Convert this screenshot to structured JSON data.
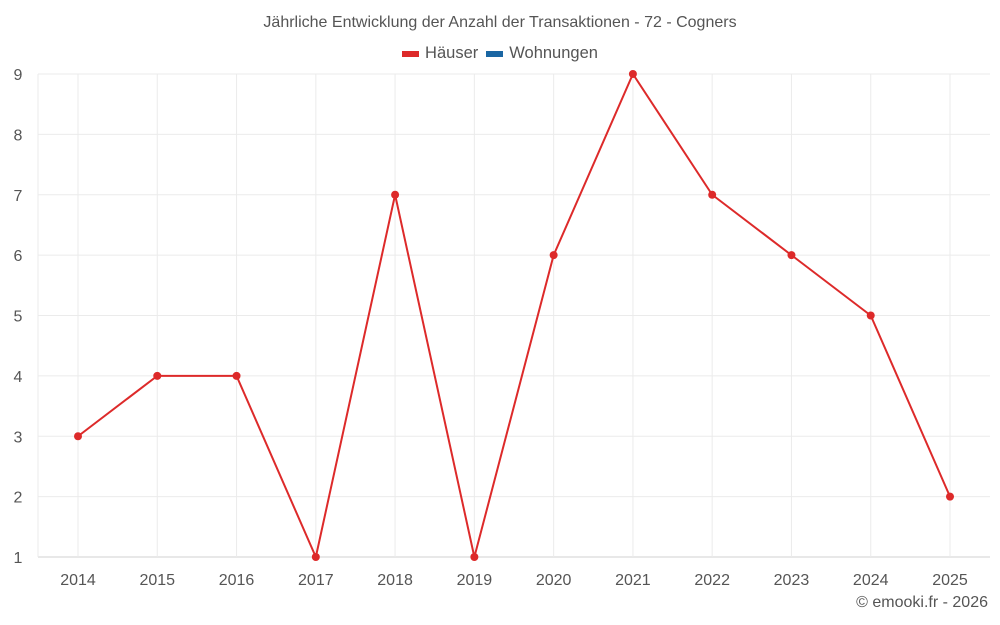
{
  "title": "Jährliche Entwicklung der Anzahl der Transaktionen - 72 - Cogners",
  "legend": [
    {
      "label": "Häuser",
      "color": "#dd2a2a"
    },
    {
      "label": "Wohnungen",
      "color": "#1a66a3"
    }
  ],
  "footer": "© emooki.fr - 2026",
  "chart_data": {
    "type": "line",
    "title": "Jährliche Entwicklung der Anzahl der Transaktionen - 72 - Cogners",
    "xlabel": "",
    "ylabel": "",
    "categories": [
      "2014",
      "2015",
      "2016",
      "2017",
      "2018",
      "2019",
      "2020",
      "2021",
      "2022",
      "2023",
      "2024",
      "2025"
    ],
    "series": [
      {
        "name": "Häuser",
        "color": "#dd2a2a",
        "values": [
          3,
          4,
          4,
          1,
          7,
          1,
          6,
          9,
          7,
          6,
          5,
          2
        ]
      },
      {
        "name": "Wohnungen",
        "color": "#1a66a3",
        "values": []
      }
    ],
    "yticks": [
      1,
      2,
      3,
      4,
      5,
      6,
      7,
      8,
      9
    ],
    "ylim": [
      1,
      9
    ],
    "grid": true,
    "legend_position": "top"
  }
}
